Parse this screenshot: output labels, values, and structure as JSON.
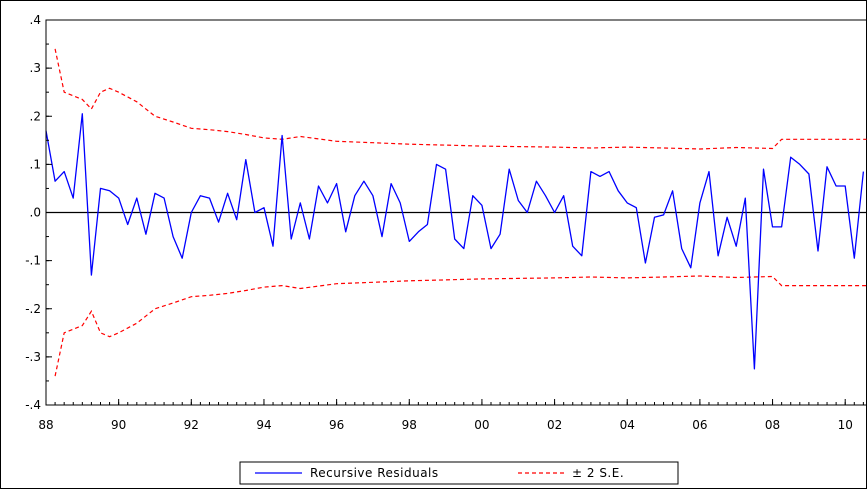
{
  "chart_data": {
    "type": "line",
    "title": "",
    "xlabel": "",
    "ylabel": "",
    "xlim": [
      1988.0,
      2010.6
    ],
    "ylim": [
      -0.4,
      0.4
    ],
    "x_tick_labels": [
      "88",
      "90",
      "92",
      "94",
      "96",
      "98",
      "00",
      "02",
      "04",
      "06",
      "08",
      "10"
    ],
    "x_tick_values": [
      1988,
      1990,
      1992,
      1994,
      1996,
      1998,
      2000,
      2002,
      2004,
      2006,
      2008,
      2010
    ],
    "y_tick_labels": [
      ".4",
      ".3",
      ".2",
      ".1",
      ".0",
      "-.1",
      "-.2",
      "-.3",
      "-.4"
    ],
    "y_tick_values": [
      0.4,
      0.3,
      0.2,
      0.1,
      0.0,
      -0.1,
      -0.2,
      -0.3,
      -0.4
    ],
    "zero_line": true,
    "grid": false,
    "legend_position": "bottom-center",
    "series": [
      {
        "name": "Recursive Residuals",
        "color": "#0000ff",
        "style": "solid",
        "x": [
          1988.0,
          1988.25,
          1988.5,
          1988.75,
          1989.0,
          1989.25,
          1989.5,
          1989.75,
          1990.0,
          1990.25,
          1990.5,
          1990.75,
          1991.0,
          1991.25,
          1991.5,
          1991.75,
          1992.0,
          1992.25,
          1992.5,
          1992.75,
          1993.0,
          1993.25,
          1993.5,
          1993.75,
          1994.0,
          1994.25,
          1994.5,
          1994.75,
          1995.0,
          1995.25,
          1995.5,
          1995.75,
          1996.0,
          1996.25,
          1996.5,
          1996.75,
          1997.0,
          1997.25,
          1997.5,
          1997.75,
          1998.0,
          1998.25,
          1998.5,
          1998.75,
          1999.0,
          1999.25,
          1999.5,
          1999.75,
          2000.0,
          2000.25,
          2000.5,
          2000.75,
          2001.0,
          2001.25,
          2001.5,
          2001.75,
          2002.0,
          2002.25,
          2002.5,
          2002.75,
          2003.0,
          2003.25,
          2003.5,
          2003.75,
          2004.0,
          2004.25,
          2004.5,
          2004.75,
          2005.0,
          2005.25,
          2005.5,
          2005.75,
          2006.0,
          2006.25,
          2006.5,
          2006.75,
          2007.0,
          2007.25,
          2007.5,
          2007.75,
          2008.0,
          2008.25,
          2008.5,
          2008.75,
          2009.0,
          2009.25,
          2009.5,
          2009.75,
          2010.0,
          2010.25,
          2010.5
        ],
        "y": [
          0.17,
          0.065,
          0.085,
          0.03,
          0.205,
          -0.13,
          0.05,
          0.045,
          0.03,
          -0.025,
          0.03,
          -0.045,
          0.04,
          0.03,
          -0.05,
          -0.095,
          0.0,
          0.035,
          0.03,
          -0.02,
          0.04,
          -0.015,
          0.11,
          0.0,
          0.01,
          -0.07,
          0.16,
          -0.055,
          0.02,
          -0.055,
          0.055,
          0.02,
          0.06,
          -0.04,
          0.035,
          0.065,
          0.035,
          -0.05,
          0.06,
          0.02,
          -0.06,
          -0.04,
          -0.025,
          0.1,
          0.09,
          -0.055,
          -0.075,
          0.035,
          0.015,
          -0.075,
          -0.045,
          0.09,
          0.025,
          0.0,
          0.065,
          0.035,
          0.0,
          0.035,
          -0.07,
          -0.09,
          0.085,
          0.075,
          0.085,
          0.045,
          0.02,
          0.01,
          -0.105,
          -0.01,
          -0.005,
          0.045,
          -0.075,
          -0.115,
          0.02,
          0.085,
          -0.09,
          -0.01,
          -0.07,
          0.03,
          -0.325,
          0.09,
          -0.03,
          -0.03,
          0.115,
          0.1,
          0.08,
          -0.08,
          0.095,
          0.055,
          0.055,
          -0.095,
          0.085
        ]
      },
      {
        "name": "± 2 S.E.",
        "color": "#ff0000",
        "style": "dashed",
        "x": [
          1988.25,
          1988.5,
          1989.0,
          1989.25,
          1989.5,
          1989.75,
          1990.0,
          1990.5,
          1991.0,
          1991.5,
          1992.0,
          1992.5,
          1993.0,
          1993.5,
          1994.0,
          1994.5,
          1995.0,
          1995.5,
          1996.0,
          1997.0,
          1998.0,
          1999.0,
          2000.0,
          2001.0,
          2002.0,
          2003.0,
          2004.0,
          2005.0,
          2006.0,
          2007.0,
          2008.0,
          2008.25,
          2009.0,
          2010.0,
          2010.6
        ],
        "upper": [
          0.34,
          0.25,
          0.235,
          0.215,
          0.25,
          0.258,
          0.25,
          0.23,
          0.2,
          0.188,
          0.175,
          0.172,
          0.168,
          0.162,
          0.155,
          0.152,
          0.158,
          0.153,
          0.148,
          0.145,
          0.142,
          0.14,
          0.138,
          0.137,
          0.136,
          0.134,
          0.136,
          0.134,
          0.132,
          0.135,
          0.133,
          0.152,
          0.152,
          0.152,
          0.152
        ],
        "lower": [
          -0.34,
          -0.25,
          -0.235,
          -0.205,
          -0.25,
          -0.258,
          -0.25,
          -0.23,
          -0.2,
          -0.188,
          -0.175,
          -0.172,
          -0.168,
          -0.162,
          -0.155,
          -0.152,
          -0.158,
          -0.153,
          -0.148,
          -0.145,
          -0.142,
          -0.14,
          -0.138,
          -0.137,
          -0.136,
          -0.134,
          -0.136,
          -0.134,
          -0.132,
          -0.135,
          -0.133,
          -0.152,
          -0.152,
          -0.152,
          -0.152
        ]
      }
    ],
    "legend": [
      {
        "label": "Recursive Residuals",
        "color": "#0000ff",
        "style": "solid"
      },
      {
        "label": "± 2 S.E.",
        "color": "#ff0000",
        "style": "dashed"
      }
    ]
  }
}
